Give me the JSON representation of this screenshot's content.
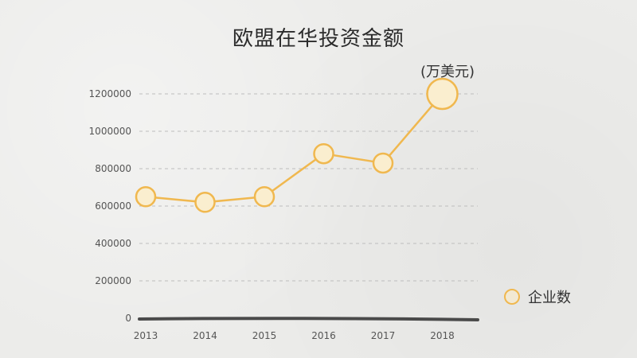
{
  "title": "欧盟在华投资金额",
  "unit_label": "(万美元)",
  "legend": {
    "label": "企业数"
  },
  "colors": {
    "line": "#f0b84f",
    "point_fill": "#faeecf",
    "grid": "#bdbdbd",
    "axis_text": "#555555",
    "baseline": "#4a4a4a"
  },
  "chart_data": {
    "type": "line",
    "title": "欧盟在华投资金额",
    "xlabel": "",
    "ylabel": "(万美元)",
    "categories": [
      "2013",
      "2014",
      "2015",
      "2016",
      "2017",
      "2018"
    ],
    "series": [
      {
        "name": "企业数",
        "values": [
          650000,
          620000,
          650000,
          880000,
          830000,
          1200000
        ]
      }
    ],
    "ylim": [
      0,
      1200000
    ],
    "yticks": [
      0,
      200000,
      400000,
      600000,
      800000,
      1000000,
      1200000
    ],
    "ytick_labels": [
      "0",
      "200000",
      "400000",
      "600000",
      "800000",
      "1000000",
      "1200000"
    ],
    "grid": true,
    "legend_position": "right"
  }
}
